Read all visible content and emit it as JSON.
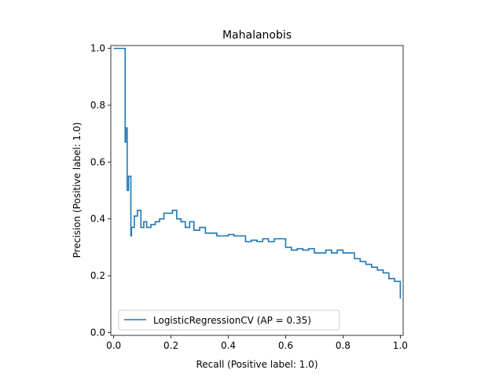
{
  "chart_data": {
    "type": "line",
    "title": "Mahalanobis",
    "xlabel": "Recall (Positive label: 1.0)",
    "ylabel": "Precision (Positive label: 1.0)",
    "xlim": [
      -0.01,
      1.01
    ],
    "ylim": [
      -0.01,
      1.01
    ],
    "xticks": [
      0.0,
      0.2,
      0.4,
      0.6,
      0.8,
      1.0
    ],
    "yticks": [
      0.0,
      0.2,
      0.4,
      0.6,
      0.8,
      1.0
    ],
    "xtick_labels": [
      "0.0",
      "0.2",
      "0.4",
      "0.6",
      "0.8",
      "1.0"
    ],
    "ytick_labels": [
      "0.0",
      "0.2",
      "0.4",
      "0.6",
      "0.8",
      "1.0"
    ],
    "grid": false,
    "legend_position": "lower-left",
    "series": [
      {
        "name": "LogisticRegressionCV (AP = 0.35)",
        "color": "#1f77b4",
        "step": "post",
        "x": [
          0.0,
          0.04,
          0.04,
          0.042,
          0.047,
          0.052,
          0.06,
          0.062,
          0.072,
          0.083,
          0.095,
          0.105,
          0.115,
          0.13,
          0.145,
          0.16,
          0.175,
          0.19,
          0.205,
          0.22,
          0.235,
          0.25,
          0.265,
          0.28,
          0.3,
          0.32,
          0.34,
          0.36,
          0.38,
          0.4,
          0.42,
          0.44,
          0.46,
          0.48,
          0.5,
          0.52,
          0.54,
          0.56,
          0.58,
          0.6,
          0.62,
          0.64,
          0.66,
          0.68,
          0.7,
          0.72,
          0.74,
          0.76,
          0.78,
          0.8,
          0.82,
          0.84,
          0.86,
          0.88,
          0.9,
          0.92,
          0.94,
          0.96,
          0.98,
          1.0
        ],
        "y": [
          1.0,
          1.0,
          0.67,
          0.72,
          0.5,
          0.55,
          0.34,
          0.37,
          0.41,
          0.43,
          0.37,
          0.39,
          0.37,
          0.38,
          0.39,
          0.4,
          0.42,
          0.42,
          0.43,
          0.4,
          0.39,
          0.37,
          0.39,
          0.36,
          0.37,
          0.35,
          0.35,
          0.34,
          0.34,
          0.345,
          0.34,
          0.34,
          0.32,
          0.325,
          0.32,
          0.33,
          0.32,
          0.33,
          0.33,
          0.3,
          0.29,
          0.295,
          0.29,
          0.295,
          0.28,
          0.28,
          0.29,
          0.28,
          0.29,
          0.28,
          0.28,
          0.26,
          0.25,
          0.24,
          0.23,
          0.22,
          0.21,
          0.19,
          0.18,
          0.12
        ]
      }
    ]
  }
}
